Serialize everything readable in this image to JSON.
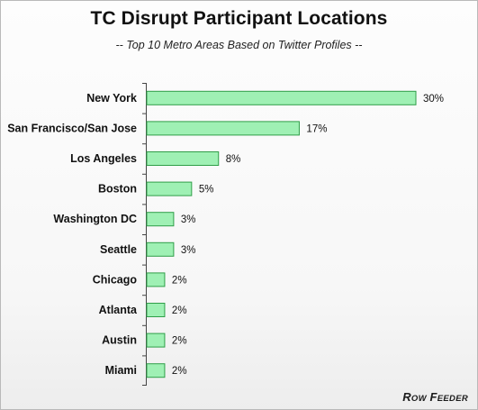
{
  "chart_data": {
    "type": "bar",
    "orientation": "horizontal",
    "title": "TC Disrupt Participant Locations",
    "subtitle": "-- Top 10 Metro Areas Based on Twitter Profiles --",
    "categories": [
      "New York",
      "San Francisco/San Jose",
      "Los Angeles",
      "Boston",
      "Washington DC",
      "Seattle",
      "Chicago",
      "Atlanta",
      "Austin",
      "Miami"
    ],
    "values": [
      30,
      17,
      8,
      5,
      3,
      3,
      2,
      2,
      2,
      2
    ],
    "data_labels": [
      "30%",
      "17%",
      "8%",
      "5%",
      "3%",
      "3%",
      "2%",
      "2%",
      "2%",
      "2%"
    ],
    "xlim": [
      0,
      30
    ],
    "grid": false,
    "legend": "none",
    "colors": {
      "bar_fill": "#9ff0b4",
      "bar_stroke": "#2f9e48",
      "axis": "#444444"
    }
  },
  "brand": {
    "first_big": "R",
    "first_small": "ow",
    "second_big": "F",
    "second_small": "eeder"
  }
}
